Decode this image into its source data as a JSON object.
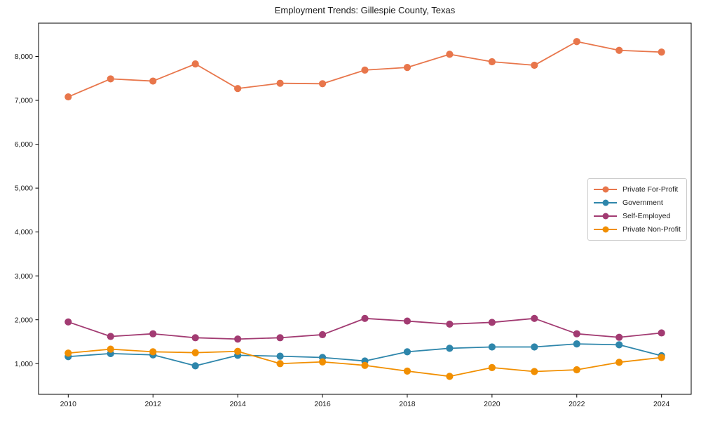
{
  "title": "Employment Trends: Gillespie County, Texas",
  "axis_color": "#000000",
  "chart_data": {
    "type": "line",
    "x": [
      2010,
      2011,
      2012,
      2013,
      2014,
      2015,
      2016,
      2017,
      2018,
      2019,
      2020,
      2021,
      2022,
      2023,
      2024
    ],
    "series": [
      {
        "name": "Private For-Profit",
        "color": "#E8764B",
        "values": [
          7080,
          7490,
          7440,
          7830,
          7270,
          7390,
          7380,
          7690,
          7750,
          8050,
          7880,
          7800,
          8340,
          8140,
          8100
        ]
      },
      {
        "name": "Government",
        "color": "#2E86AB",
        "values": [
          1160,
          1230,
          1200,
          950,
          1190,
          1170,
          1140,
          1060,
          1270,
          1350,
          1380,
          1380,
          1450,
          1430,
          1180
        ]
      },
      {
        "name": "Self-Employed",
        "color": "#A23B72",
        "values": [
          1950,
          1620,
          1680,
          1590,
          1560,
          1590,
          1660,
          2030,
          1970,
          1900,
          1940,
          2030,
          1680,
          1600,
          1700
        ]
      },
      {
        "name": "Private Non-Profit",
        "color": "#F18F01",
        "values": [
          1240,
          1330,
          1270,
          1250,
          1280,
          1000,
          1040,
          960,
          830,
          710,
          910,
          820,
          860,
          1030,
          1140
        ]
      }
    ],
    "xticks": [
      2010,
      2012,
      2014,
      2016,
      2018,
      2020,
      2022,
      2024
    ],
    "xtick_labels": [
      "2010",
      "2012",
      "2014",
      "2016",
      "2018",
      "2020",
      "2022",
      "2024"
    ],
    "yticks": [
      1000,
      2000,
      3000,
      4000,
      5000,
      6000,
      7000,
      8000
    ],
    "ytick_labels": [
      "1,000",
      "2,000",
      "3,000",
      "4,000",
      "5,000",
      "6,000",
      "7,000",
      "8,000"
    ],
    "xlim": [
      2009.3,
      2024.7
    ],
    "ylim": [
      300,
      8760
    ],
    "grid": false,
    "legend_position": "center right",
    "xlabel": "",
    "ylabel": ""
  }
}
